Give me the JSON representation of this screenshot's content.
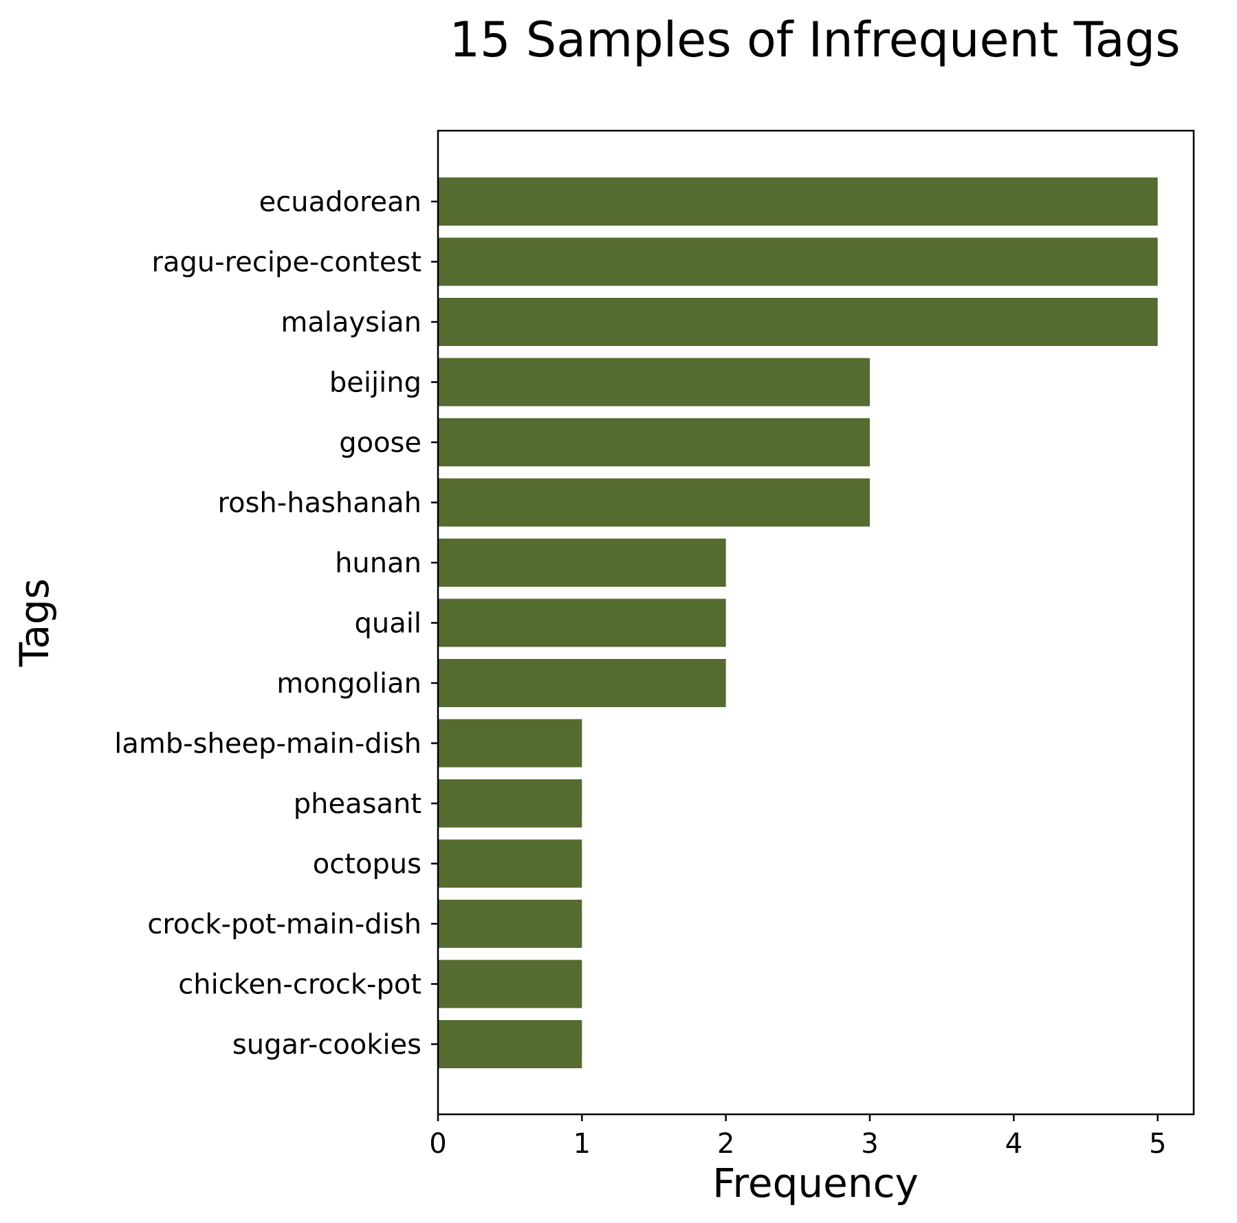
{
  "colors": {
    "bar": "#556b2f",
    "axes": "#000000",
    "background": "#ffffff"
  },
  "chart_data": {
    "type": "bar",
    "orientation": "horizontal",
    "title": "15 Samples of Infrequent Tags",
    "xlabel": "Frequency",
    "ylabel": "Tags",
    "categories": [
      "ecuadorean",
      "ragu-recipe-contest",
      "malaysian",
      "beijing",
      "goose",
      "rosh-hashanah",
      "hunan",
      "quail",
      "mongolian",
      "lamb-sheep-main-dish",
      "pheasant",
      "octopus",
      "crock-pot-main-dish",
      "chicken-crock-pot",
      "sugar-cookies"
    ],
    "values": [
      5,
      5,
      5,
      3,
      3,
      3,
      2,
      2,
      2,
      1,
      1,
      1,
      1,
      1,
      1
    ],
    "xlim": [
      0,
      5.25
    ],
    "xticks": [
      0,
      1,
      2,
      3,
      4,
      5
    ],
    "grid": false,
    "legend": "none"
  }
}
